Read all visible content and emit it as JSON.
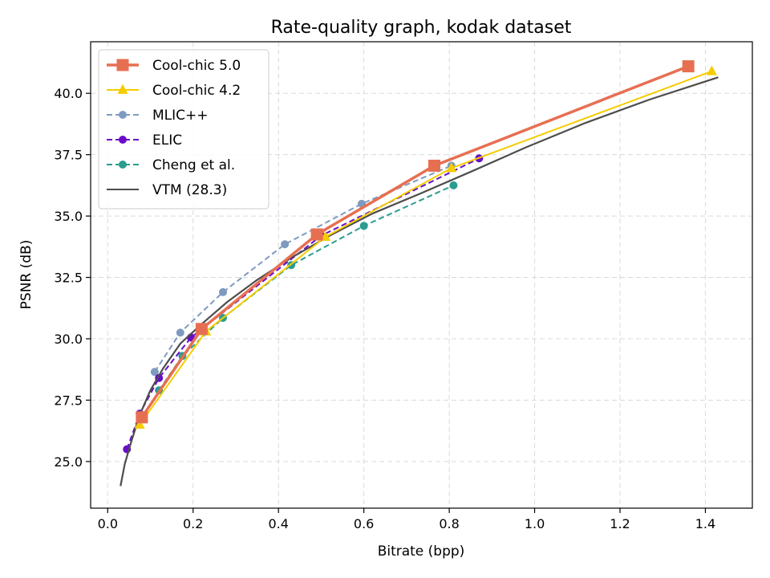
{
  "chart_data": {
    "type": "line",
    "title": "Rate-quality graph, kodak dataset",
    "xlabel": "Bitrate (bpp)",
    "ylabel": "PSNR (dB)",
    "xlim": [
      -0.04,
      1.51
    ],
    "ylim": [
      23.1,
      42.1
    ],
    "xticks": [
      0.0,
      0.2,
      0.4,
      0.6,
      0.8,
      1.0,
      1.2,
      1.4
    ],
    "xtick_labels": [
      "0.0",
      "0.2",
      "0.4",
      "0.6",
      "0.8",
      "1.0",
      "1.2",
      "1.4"
    ],
    "yticks": [
      25.0,
      27.5,
      30.0,
      32.5,
      35.0,
      37.5,
      40.0
    ],
    "ytick_labels": [
      "25.0",
      "27.5",
      "30.0",
      "32.5",
      "35.0",
      "37.5",
      "40.0"
    ],
    "grid": true,
    "legend_position": "top-left",
    "series": [
      {
        "name": "Cool-chic 5.0",
        "color": "#E76F51",
        "line_style": "solid",
        "marker": "square",
        "x": [
          0.08,
          0.22,
          0.49,
          0.765,
          1.36
        ],
        "y": [
          26.8,
          30.4,
          34.25,
          37.05,
          41.1
        ]
      },
      {
        "name": "Cool-chic 4.2",
        "color": "#F5CC00",
        "line_style": "solid",
        "marker": "triangle",
        "x": [
          0.075,
          0.23,
          0.51,
          0.805,
          1.415
        ],
        "y": [
          26.5,
          30.3,
          34.15,
          36.95,
          40.9
        ]
      },
      {
        "name": "MLIC++",
        "color": "#7E9ABF",
        "line_style": "dashed",
        "marker": "circle",
        "x": [
          0.11,
          0.17,
          0.27,
          0.415,
          0.595,
          0.805
        ],
        "y": [
          28.65,
          30.25,
          31.9,
          33.85,
          35.5,
          37.05
        ]
      },
      {
        "name": "ELIC",
        "color": "#6A0DC9",
        "line_style": "dashed",
        "marker": "circle",
        "x": [
          0.045,
          0.075,
          0.12,
          0.195,
          0.5,
          0.87
        ],
        "y": [
          25.5,
          26.95,
          28.4,
          30.05,
          34.2,
          37.35
        ]
      },
      {
        "name": "Cheng et al.",
        "color": "#2A9D8F",
        "line_style": "dashed",
        "marker": "circle",
        "x": [
          0.12,
          0.175,
          0.27,
          0.43,
          0.6,
          0.81
        ],
        "y": [
          27.9,
          29.3,
          30.85,
          33.0,
          34.6,
          36.25
        ]
      },
      {
        "name": "VTM (28.3)",
        "color": "#4D4D4D",
        "line_style": "solid",
        "marker": "none",
        "x": [
          0.03,
          0.04,
          0.055,
          0.075,
          0.1,
          0.13,
          0.17,
          0.22,
          0.28,
          0.35,
          0.43,
          0.52,
          0.62,
          0.73,
          0.85,
          0.98,
          1.12,
          1.27,
          1.43
        ],
        "y": [
          24.0,
          24.9,
          25.8,
          26.9,
          27.9,
          28.8,
          29.8,
          30.6,
          31.5,
          32.4,
          33.3,
          34.2,
          35.1,
          35.9,
          36.8,
          37.8,
          38.8,
          39.75,
          40.65
        ]
      }
    ]
  }
}
